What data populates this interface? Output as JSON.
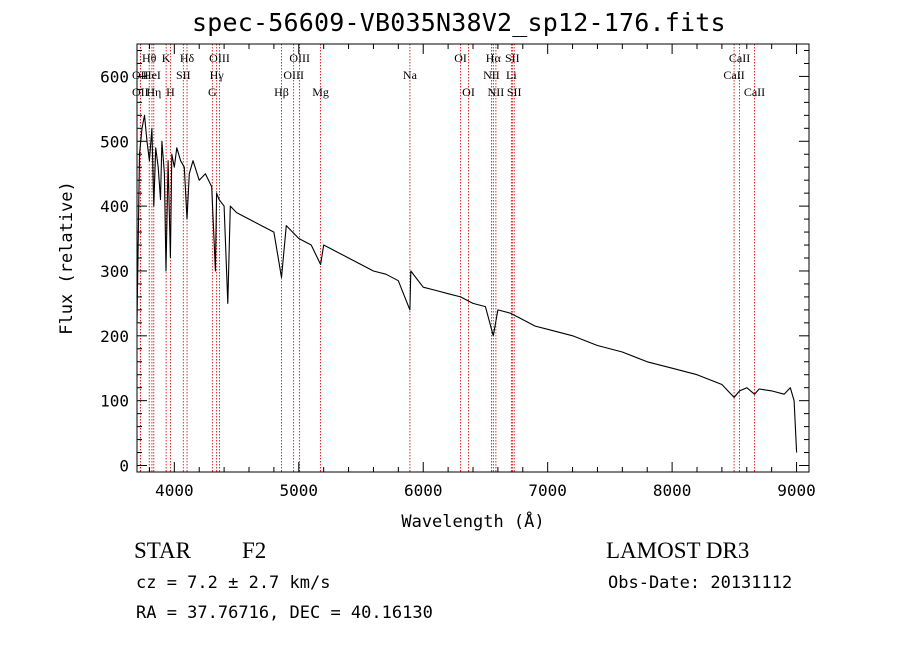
{
  "header": {
    "title": "spec-56609-VB035N38V2_sp12-176.fits"
  },
  "info": {
    "object_class": "STAR",
    "subclass": "F2",
    "survey": "LAMOST DR3",
    "cz": "cz = 7.2 ± 2.7 km/s",
    "obs_date": "Obs-Date: 20131112",
    "radec": "RA =  37.76716, DEC =  40.16130"
  },
  "chart_data": {
    "type": "line",
    "title": "spec-56609-VB035N38V2_sp12-176.fits",
    "xlabel": "Wavelength (Å)",
    "ylabel": "Flux (relative)",
    "xlim": [
      3700,
      9100
    ],
    "ylim": [
      -10,
      650
    ],
    "xticks": [
      4000,
      5000,
      6000,
      7000,
      8000,
      9000
    ],
    "yticks": [
      0,
      100,
      200,
      300,
      400,
      500,
      600
    ],
    "grid": false,
    "series": [
      {
        "name": "spectrum",
        "x": [
          3700,
          3720,
          3740,
          3760,
          3780,
          3800,
          3820,
          3835,
          3850,
          3870,
          3889,
          3900,
          3920,
          3933,
          3950,
          3968,
          3980,
          4000,
          4020,
          4050,
          4080,
          4102,
          4120,
          4150,
          4200,
          4250,
          4300,
          4330,
          4340,
          4360,
          4400,
          4430,
          4450,
          4500,
          4600,
          4700,
          4800,
          4861,
          4900,
          5000,
          5100,
          5175,
          5200,
          5300,
          5400,
          5500,
          5600,
          5700,
          5800,
          5893,
          5900,
          6000,
          6100,
          6200,
          6300,
          6400,
          6500,
          6563,
          6600,
          6700,
          6800,
          6900,
          7000,
          7200,
          7400,
          7600,
          7800,
          8000,
          8200,
          8400,
          8498,
          8542,
          8600,
          8662,
          8700,
          8800,
          8900,
          8950,
          8980,
          9000
        ],
        "y": [
          220,
          480,
          520,
          540,
          500,
          470,
          520,
          400,
          490,
          460,
          410,
          500,
          450,
          300,
          470,
          320,
          480,
          460,
          490,
          470,
          460,
          380,
          450,
          470,
          440,
          450,
          430,
          300,
          420,
          410,
          400,
          250,
          400,
          390,
          380,
          370,
          360,
          290,
          370,
          350,
          340,
          310,
          340,
          330,
          320,
          310,
          300,
          295,
          285,
          240,
          300,
          275,
          270,
          265,
          260,
          250,
          245,
          200,
          240,
          235,
          225,
          215,
          210,
          200,
          185,
          175,
          160,
          150,
          140,
          125,
          105,
          115,
          120,
          110,
          118,
          115,
          110,
          120,
          100,
          20
        ]
      }
    ],
    "lines": [
      {
        "label": "Hθ",
        "wavelength": 3798,
        "row": 0
      },
      {
        "label": "OII",
        "wavelength": 3727,
        "row": 1
      },
      {
        "label": "OII",
        "wavelength": 3727,
        "row": 2
      },
      {
        "label": "HeI",
        "wavelength": 3820,
        "row": 1
      },
      {
        "label": "Hη",
        "wavelength": 3835,
        "row": 2
      },
      {
        "label": "K",
        "wavelength": 3934,
        "row": 0
      },
      {
        "label": "SII",
        "wavelength": 4072,
        "row": 1
      },
      {
        "label": "H",
        "wavelength": 3969,
        "row": 2
      },
      {
        "label": "Hδ",
        "wavelength": 4102,
        "row": 0
      },
      {
        "label": "OIII",
        "wavelength": 4363,
        "row": 0
      },
      {
        "label": "Hγ",
        "wavelength": 4340,
        "row": 1
      },
      {
        "label": "G",
        "wavelength": 4305,
        "row": 2
      },
      {
        "label": "OIII",
        "wavelength": 5007,
        "row": 0
      },
      {
        "label": "OIII",
        "wavelength": 4959,
        "row": 1
      },
      {
        "label": "Hβ",
        "wavelength": 4861,
        "row": 2
      },
      {
        "label": "Mg",
        "wavelength": 5175,
        "row": 2
      },
      {
        "label": "Na",
        "wavelength": 5893,
        "row": 1
      },
      {
        "label": "OI",
        "wavelength": 6300,
        "row": 0
      },
      {
        "label": "OI",
        "wavelength": 6364,
        "row": 2
      },
      {
        "label": "Hα",
        "wavelength": 6563,
        "row": 0
      },
      {
        "label": "SII",
        "wavelength": 6716,
        "row": 0
      },
      {
        "label": "NII",
        "wavelength": 6548,
        "row": 1
      },
      {
        "label": "Li",
        "wavelength": 6708,
        "row": 1
      },
      {
        "label": "NII",
        "wavelength": 6584,
        "row": 2
      },
      {
        "label": "SII",
        "wavelength": 6731,
        "row": 2
      },
      {
        "label": "CaII",
        "wavelength": 8542,
        "row": 0
      },
      {
        "label": "CaII",
        "wavelength": 8498,
        "row": 1
      },
      {
        "label": "CaII",
        "wavelength": 8662,
        "row": 2
      }
    ],
    "colors": {
      "axis": "#000000",
      "spectrum": "#000000",
      "line_marker": "#cc0000"
    }
  }
}
